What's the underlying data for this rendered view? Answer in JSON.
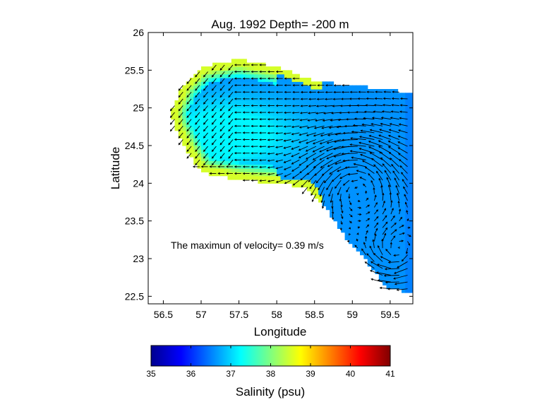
{
  "chart_data": [
    {
      "type": "heatmap",
      "title": "Aug. 1992   Depth= -200 m",
      "xlabel": "Longitude",
      "ylabel": "Latitude",
      "xlim": [
        56.3,
        59.8
      ],
      "ylim": [
        22.4,
        26
      ],
      "xticks": [
        "56.5",
        "57",
        "57.5",
        "58",
        "58.5",
        "59",
        "59.5"
      ],
      "yticks": [
        "22.5",
        "23",
        "23.5",
        "24",
        "24.5",
        "25",
        "25.5",
        "26"
      ],
      "annotation": "The maximun of velocity= 0.39 m/s",
      "field": "salinity",
      "typical_values": {
        "interior_basin": 36.5,
        "mid_shelf": 37.2,
        "coastal_edge": 38.5
      },
      "domain_outline": [
        [
          56.6,
          24.95
        ],
        [
          56.75,
          25.3
        ],
        [
          57.0,
          25.55
        ],
        [
          57.5,
          25.65
        ],
        [
          58.0,
          25.55
        ],
        [
          58.5,
          25.35
        ],
        [
          59.0,
          25.3
        ],
        [
          59.8,
          25.2
        ],
        [
          59.8,
          22.55
        ],
        [
          59.45,
          22.6
        ],
        [
          59.2,
          22.95
        ],
        [
          59.0,
          23.15
        ],
        [
          58.7,
          23.6
        ],
        [
          58.4,
          23.95
        ],
        [
          58.0,
          24.0
        ],
        [
          57.5,
          24.05
        ],
        [
          57.0,
          24.15
        ],
        [
          56.8,
          24.45
        ],
        [
          56.65,
          24.75
        ]
      ],
      "vectors": "velocity field overlay, max 0.39 m/s"
    },
    {
      "type": "colorbar",
      "label": "Salinity (psu)",
      "range": [
        35,
        41
      ],
      "ticks": [
        "35",
        "36",
        "37",
        "38",
        "39",
        "40",
        "41"
      ],
      "colormap": "jet"
    }
  ]
}
